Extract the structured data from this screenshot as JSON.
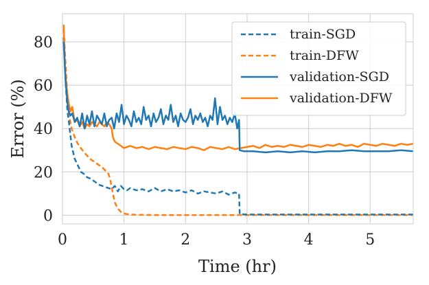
{
  "chart_data": {
    "type": "line",
    "title": "",
    "xlabel": "Time (hr)",
    "ylabel": "Error (%)",
    "xlim": [
      0,
      5.7
    ],
    "ylim": [
      -4,
      93
    ],
    "xticks": [
      0,
      1,
      2,
      3,
      4,
      5
    ],
    "yticks": [
      0,
      20,
      40,
      60,
      80
    ],
    "grid": true,
    "legend": "top-right",
    "series": [
      {
        "name": "train-SGD",
        "color": "#1f77b4",
        "style": "dashed",
        "x": [
          0.02,
          0.05,
          0.08,
          0.1,
          0.12,
          0.15,
          0.2,
          0.25,
          0.3,
          0.35,
          0.4,
          0.45,
          0.5,
          0.55,
          0.6,
          0.65,
          0.7,
          0.75,
          0.8,
          0.85,
          0.9,
          0.95,
          1.0,
          1.05,
          1.1,
          1.15,
          1.2,
          1.3,
          1.4,
          1.5,
          1.6,
          1.7,
          1.8,
          1.9,
          2.0,
          2.1,
          2.2,
          2.3,
          2.4,
          2.5,
          2.6,
          2.7,
          2.8,
          2.87,
          2.88,
          3.0,
          3.5,
          4.0,
          4.5,
          5.0,
          5.5,
          5.7
        ],
        "y": [
          82,
          62,
          48,
          44,
          39,
          32,
          26,
          23,
          20,
          19,
          17.5,
          17,
          16,
          15,
          14,
          13.5,
          13,
          12.5,
          12,
          13.5,
          11,
          13.5,
          12,
          11.5,
          12.5,
          12,
          11.5,
          12,
          11,
          12.5,
          11,
          12,
          11,
          11.5,
          10.5,
          11.5,
          10,
          11,
          10.5,
          10,
          11,
          9.5,
          10.5,
          10,
          0.5,
          0.3,
          0.3,
          0.3,
          0.3,
          0.3,
          0.3,
          0.3
        ]
      },
      {
        "name": "train-DFW",
        "color": "#ff7f0e",
        "style": "dashed",
        "x": [
          0.02,
          0.05,
          0.08,
          0.1,
          0.12,
          0.15,
          0.2,
          0.25,
          0.3,
          0.35,
          0.4,
          0.45,
          0.5,
          0.55,
          0.6,
          0.65,
          0.7,
          0.75,
          0.78,
          0.82,
          0.85,
          0.9,
          0.95,
          1.0,
          1.05,
          1.1,
          1.2,
          1.5,
          2.0,
          2.5,
          3.0,
          3.5,
          4.0,
          4.5,
          5.0,
          5.5,
          5.7
        ],
        "y": [
          86,
          70,
          55,
          48,
          44,
          40,
          36,
          33,
          31,
          29,
          27.5,
          26,
          25,
          24,
          23,
          22,
          20.5,
          19,
          16,
          10,
          6,
          3,
          1.5,
          0.8,
          0.5,
          0.3,
          0.2,
          0.1,
          0.1,
          0.1,
          0.1,
          0.1,
          0.1,
          0.1,
          0.1,
          0.1,
          0.1
        ]
      },
      {
        "name": "validation-SGD",
        "color": "#1f77b4",
        "style": "solid",
        "x": [
          0.02,
          0.05,
          0.08,
          0.1,
          0.13,
          0.16,
          0.2,
          0.24,
          0.28,
          0.32,
          0.36,
          0.4,
          0.44,
          0.48,
          0.52,
          0.56,
          0.6,
          0.64,
          0.68,
          0.72,
          0.76,
          0.8,
          0.84,
          0.88,
          0.92,
          0.96,
          1.0,
          1.04,
          1.08,
          1.12,
          1.16,
          1.2,
          1.24,
          1.28,
          1.32,
          1.36,
          1.4,
          1.44,
          1.48,
          1.52,
          1.56,
          1.6,
          1.64,
          1.68,
          1.72,
          1.76,
          1.8,
          1.84,
          1.88,
          1.92,
          1.96,
          2.0,
          2.04,
          2.08,
          2.12,
          2.16,
          2.2,
          2.24,
          2.28,
          2.32,
          2.36,
          2.4,
          2.44,
          2.48,
          2.52,
          2.56,
          2.6,
          2.64,
          2.68,
          2.72,
          2.76,
          2.8,
          2.84,
          2.87,
          2.88,
          2.95,
          3.1,
          3.3,
          3.5,
          3.7,
          3.9,
          4.1,
          4.3,
          4.5,
          4.7,
          4.9,
          5.1,
          5.3,
          5.5,
          5.7
        ],
        "y": [
          80,
          62,
          52,
          48,
          46,
          47,
          43,
          45,
          41,
          47,
          40,
          46,
          42,
          48,
          41,
          46,
          44,
          42,
          47,
          41,
          44,
          45,
          40,
          47,
          43,
          51,
          42,
          46,
          44,
          41,
          48,
          43,
          45,
          42,
          50,
          44,
          46,
          41,
          47,
          43,
          45,
          49,
          42,
          46,
          44,
          51,
          43,
          46,
          41,
          47,
          44,
          43,
          45,
          49,
          42,
          46,
          44,
          47,
          43,
          45,
          41,
          46,
          44,
          54,
          42,
          50,
          44,
          46,
          42,
          45,
          43,
          47,
          40,
          44,
          30,
          29.5,
          29.5,
          29,
          29.5,
          29,
          29.5,
          29,
          29.5,
          29.5,
          30,
          29.5,
          29.5,
          29.5,
          30,
          29.5
        ]
      },
      {
        "name": "validation-DFW",
        "color": "#ff7f0e",
        "style": "solid",
        "x": [
          0.02,
          0.04,
          0.07,
          0.1,
          0.13,
          0.16,
          0.2,
          0.24,
          0.28,
          0.32,
          0.36,
          0.4,
          0.44,
          0.48,
          0.52,
          0.56,
          0.6,
          0.64,
          0.68,
          0.72,
          0.76,
          0.8,
          0.82,
          0.85,
          0.9,
          0.95,
          1.0,
          1.1,
          1.2,
          1.3,
          1.4,
          1.5,
          1.6,
          1.7,
          1.8,
          1.9,
          2.0,
          2.1,
          2.2,
          2.3,
          2.4,
          2.5,
          2.6,
          2.7,
          2.8,
          2.9,
          3.0,
          3.1,
          3.2,
          3.3,
          3.4,
          3.5,
          3.6,
          3.7,
          3.8,
          3.9,
          4.0,
          4.1,
          4.2,
          4.3,
          4.4,
          4.5,
          4.6,
          4.7,
          4.8,
          4.9,
          5.0,
          5.1,
          5.2,
          5.3,
          5.4,
          5.5,
          5.6,
          5.7
        ],
        "y": [
          88,
          68,
          58,
          52,
          48,
          50,
          43,
          44,
          41,
          43,
          40,
          42,
          41,
          43,
          42,
          41,
          43,
          42,
          41,
          43,
          42,
          40,
          36,
          34,
          33,
          32,
          31,
          32,
          31,
          31.5,
          30.5,
          31.5,
          31,
          30.5,
          31.5,
          31,
          30.5,
          31.5,
          31,
          30,
          31.5,
          31,
          30.5,
          31.5,
          30.5,
          31,
          31.5,
          32,
          31,
          32.5,
          31.5,
          32,
          31.5,
          32.5,
          32,
          31.5,
          32.5,
          32,
          31.5,
          32.5,
          32,
          33,
          32,
          32.5,
          31.5,
          33,
          32.5,
          32,
          33,
          32.5,
          32,
          33,
          32.5,
          33
        ]
      }
    ]
  }
}
